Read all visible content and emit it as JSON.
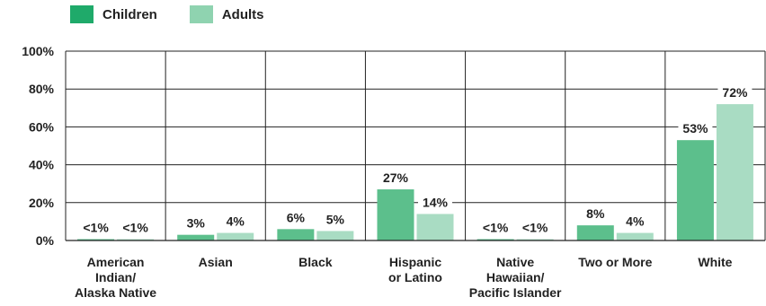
{
  "chart_data": {
    "type": "bar",
    "categories": [
      [
        "American",
        "Indian/",
        "Alaska Native"
      ],
      [
        "Asian"
      ],
      [
        "Black"
      ],
      [
        "Hispanic",
        "or Latino"
      ],
      [
        "Native",
        "Hawaiian/",
        "Pacific Islander"
      ],
      [
        "Two or More"
      ],
      [
        "White"
      ]
    ],
    "series": [
      {
        "name": "Children",
        "color": "#5cbf8c",
        "values": [
          0.5,
          3,
          6,
          27,
          0.5,
          8,
          53
        ],
        "labels": [
          "<1%",
          "3%",
          "6%",
          "27%",
          "<1%",
          "8%",
          "53%"
        ]
      },
      {
        "name": "Adults",
        "color": "#a9dcc3",
        "values": [
          0.5,
          4,
          5,
          14,
          0.5,
          4,
          72
        ],
        "labels": [
          "<1%",
          "4%",
          "5%",
          "14%",
          "<1%",
          "4%",
          "72%"
        ]
      }
    ],
    "legend_swatch_colors": [
      "#1faa6a",
      "#8fd3b0"
    ],
    "yticks": [
      "0%",
      "20%",
      "40%",
      "60%",
      "80%",
      "100%"
    ],
    "ylim": [
      0,
      100
    ],
    "grid": true,
    "legend": "top-left",
    "title": "",
    "xlabel": "",
    "ylabel": ""
  }
}
